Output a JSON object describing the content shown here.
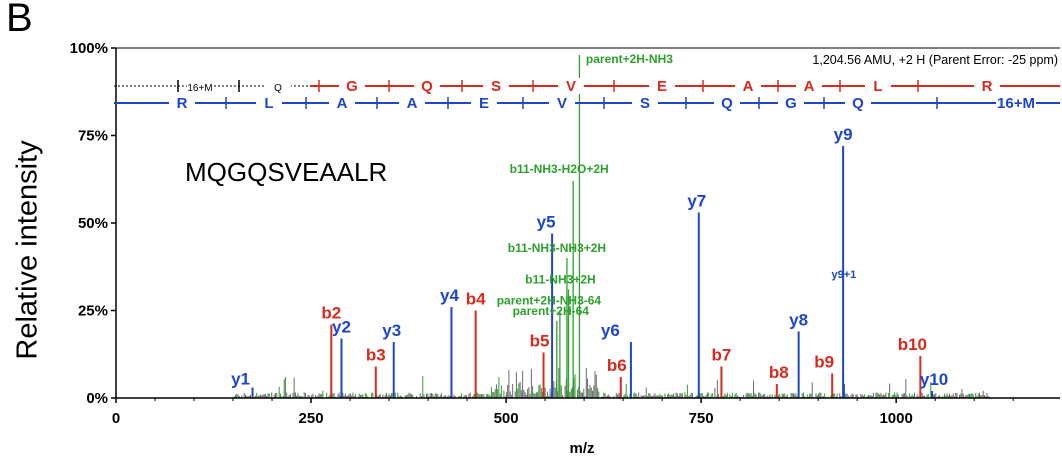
{
  "panel_label": "B",
  "colors": {
    "b_ion": "#d62b1e",
    "y_ion": "#1e46c8",
    "other": "#2ea02e",
    "axis": "#000000",
    "noise": "#6b6b6b"
  },
  "chart_data": {
    "type": "spectrum",
    "ylabel": "Relative intensity",
    "xlabel": "m/z",
    "xlim": [
      0,
      1210
    ],
    "ylim": [
      0,
      100
    ],
    "x_ticks": [
      0,
      250,
      500,
      750,
      1000
    ],
    "y_ticks": [
      {
        "value": 0,
        "label": "0%"
      },
      {
        "value": 25,
        "label": "25%"
      },
      {
        "value": 50,
        "label": "50%"
      },
      {
        "value": 75,
        "label": "75%"
      },
      {
        "value": 100,
        "label": "100%"
      }
    ],
    "peptide": "MQGQSVEAALR",
    "header": "1,204.56 AMU, +2 H (Parent Error: -25 ppm)",
    "b_ladder": [
      "16+M",
      "Q",
      "G",
      "Q",
      "S",
      "V",
      "E",
      "A",
      "A",
      "L",
      "R"
    ],
    "y_ladder": [
      "R",
      "L",
      "A",
      "A",
      "E",
      "V",
      "S",
      "Q",
      "G",
      "Q",
      "16+M"
    ],
    "peaks": [
      {
        "label": "y1",
        "mz": 175,
        "intensity": 3,
        "ion": "y"
      },
      {
        "label": "b2",
        "mz": 276,
        "intensity": 21,
        "ion": "b"
      },
      {
        "label": "y2",
        "mz": 289,
        "intensity": 17,
        "ion": "y"
      },
      {
        "label": "b3",
        "mz": 333,
        "intensity": 9,
        "ion": "b"
      },
      {
        "label": "y3",
        "mz": 356,
        "intensity": 16,
        "ion": "y"
      },
      {
        "label": "y4",
        "mz": 430,
        "intensity": 26,
        "ion": "y"
      },
      {
        "label": "b4",
        "mz": 461,
        "intensity": 25,
        "ion": "b"
      },
      {
        "label": "b5",
        "mz": 548,
        "intensity": 13,
        "ion": "b"
      },
      {
        "label": "y5",
        "mz": 559,
        "intensity": 47,
        "ion": "y"
      },
      {
        "label": "b6",
        "mz": 647,
        "intensity": 6,
        "ion": "b"
      },
      {
        "label": "y6",
        "mz": 660,
        "intensity": 16,
        "ion": "y"
      },
      {
        "label": "y7",
        "mz": 747,
        "intensity": 53,
        "ion": "y"
      },
      {
        "label": "b7",
        "mz": 776,
        "intensity": 9,
        "ion": "b"
      },
      {
        "label": "b8",
        "mz": 847,
        "intensity": 4,
        "ion": "b"
      },
      {
        "label": "y8",
        "mz": 875,
        "intensity": 19,
        "ion": "y"
      },
      {
        "label": "b9",
        "mz": 918,
        "intensity": 7,
        "ion": "b"
      },
      {
        "label": "y9",
        "mz": 932,
        "intensity": 72,
        "ion": "y"
      },
      {
        "label": "y9+1",
        "mz": 933,
        "intensity": 4,
        "ion": "y"
      },
      {
        "label": "b10",
        "mz": 1031,
        "intensity": 12,
        "ion": "b"
      },
      {
        "label": "y10",
        "mz": 1046,
        "intensity": 2,
        "ion": "y"
      },
      {
        "label": "b11-NH3-H2O+2H",
        "mz": 586,
        "intensity": 62,
        "ion": "other"
      },
      {
        "label": "b11-NH3-NH3+2H",
        "mz": 578,
        "intensity": 40,
        "ion": "other"
      },
      {
        "label": "b11-NH3+2H",
        "mz": 580,
        "intensity": 31,
        "ion": "other"
      },
      {
        "label": "parent+2H-NH3-64",
        "mz": 569,
        "intensity": 25,
        "ion": "other"
      },
      {
        "label": "parent+2H-64",
        "mz": 565,
        "intensity": 22,
        "ion": "other"
      },
      {
        "label": "parent+2H-NH3",
        "mz": 594,
        "intensity": 98,
        "ion": "other"
      }
    ]
  }
}
